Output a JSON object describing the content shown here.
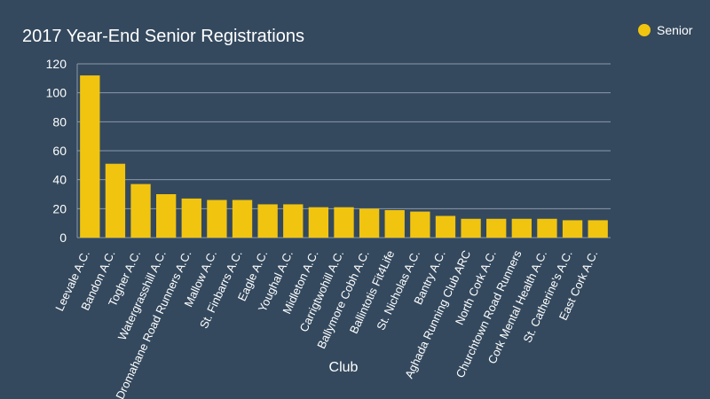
{
  "chart_data": {
    "type": "bar",
    "title": "2017 Year-End Senior Registrations",
    "x_label": "Club",
    "categories": [
      "Leevale A.C.",
      "Bandon A.C.",
      "Togher A.C.",
      "Watergrasshill A.C.",
      "Dromahane Road Runners A.C.",
      "Mallow A.C.",
      "St. Finbarrs A.C.",
      "Eagle A.C.",
      "Youghal A.C.",
      "Midleton A.C.",
      "Carrigtwohill A.C.",
      "Ballymore Cobh A.C.",
      "Ballintotis Fit4Life",
      "St. Nicholas A.C.",
      "Bantry A.C.",
      "Aghada Running Club ARC",
      "North Cork A.C.",
      "Churchtown Road Runners",
      "Cork Mental Health A.C.",
      "St. Catherine's A.C.",
      "East Cork A.C."
    ],
    "series": [
      {
        "name": "Senior",
        "color": "#f1c40f",
        "values": [
          112,
          51,
          37,
          30,
          27,
          26,
          26,
          23,
          23,
          21,
          21,
          20,
          19,
          18,
          15,
          13,
          13,
          13,
          13,
          12,
          12
        ]
      }
    ],
    "ylim": [
      0,
      120
    ],
    "yticks": [
      0,
      20,
      40,
      60,
      80,
      100,
      120
    ],
    "grid": true,
    "legend": "top-right"
  }
}
